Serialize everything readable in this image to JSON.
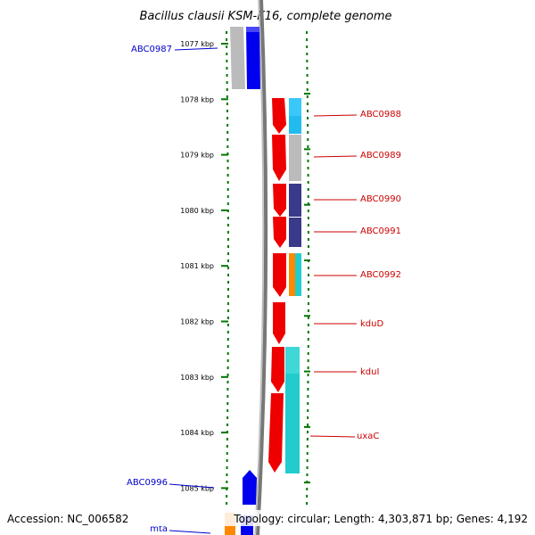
{
  "title": "Bacillus clausii KSM-K16, complete genome",
  "footer": {
    "accession": "Accession: NC_006582",
    "topology": "Topology: circular; Length: 4,303,871 bp; Genes: 4,192"
  },
  "colors": {
    "red": "#ee0000",
    "blue": "#0000ee",
    "gray": "#bbbbbb",
    "skyblue": "#22bbee",
    "navy": "#3a3a8a",
    "teal": "#22cccc",
    "orange": "#ff8800",
    "tick_green": "#007700",
    "backbone": "#777777"
  },
  "kbp_labels": [
    "1077 kbp",
    "1078 kbp",
    "1079 kbp",
    "1080 kbp",
    "1081 kbp",
    "1082 kbp",
    "1083 kbp",
    "1084 kbp",
    "1085 kbp"
  ],
  "right_genes": [
    {
      "label": "ABC0988"
    },
    {
      "label": "ABC0989"
    },
    {
      "label": "ABC0990"
    },
    {
      "label": "ABC0991"
    },
    {
      "label": "ABC0992"
    },
    {
      "label": "kduD"
    },
    {
      "label": "kduI"
    },
    {
      "label": "uxaC"
    }
  ],
  "left_genes": [
    {
      "label": "ABC0987"
    },
    {
      "label": "ABC0996"
    },
    {
      "label": "mta"
    }
  ]
}
